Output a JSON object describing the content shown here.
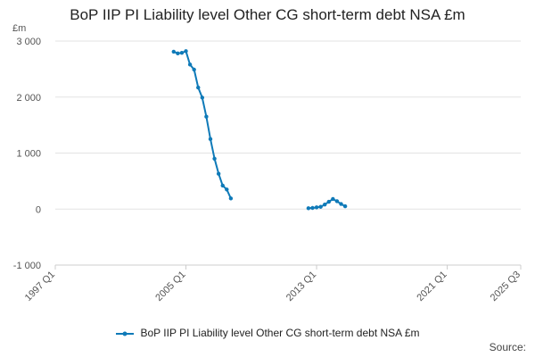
{
  "title": "BoP IIP PI Liability level Other CG short-term debt NSA £m",
  "unit_label": "£m",
  "source_label": "Source:",
  "colors": {
    "series": "#0f7ab8",
    "grid": "#e3e3e3",
    "axis": "#cccccc",
    "text": "#555555"
  },
  "chart_data": {
    "type": "line",
    "title": "BoP IIP PI Liability level Other CG short-term debt NSA £m",
    "xlabel": "",
    "ylabel": "£m",
    "x_range": [
      "1997 Q1",
      "2025 Q3"
    ],
    "x_ticks": [
      "1997 Q1",
      "2005 Q1",
      "2013 Q1",
      "2021 Q1",
      "2025 Q3"
    ],
    "ylim": [
      -1000,
      3000
    ],
    "y_ticks": [
      -1000,
      0,
      1000,
      2000,
      3000
    ],
    "y_tick_labels": [
      "-1 000",
      "0",
      "1 000",
      "2 000",
      "3 000"
    ],
    "grid": true,
    "legend_position": "bottom",
    "series": [
      {
        "name": "BoP IIP PI Liability level Other CG short-term debt NSA £m",
        "segments": [
          [
            {
              "x": "2004 Q2",
              "y": 2810
            },
            {
              "x": "2004 Q3",
              "y": 2780
            },
            {
              "x": "2004 Q4",
              "y": 2790
            },
            {
              "x": "2005 Q1",
              "y": 2820
            },
            {
              "x": "2005 Q2",
              "y": 2580
            },
            {
              "x": "2005 Q3",
              "y": 2490
            },
            {
              "x": "2005 Q4",
              "y": 2170
            },
            {
              "x": "2006 Q1",
              "y": 1990
            },
            {
              "x": "2006 Q2",
              "y": 1650
            },
            {
              "x": "2006 Q3",
              "y": 1250
            },
            {
              "x": "2006 Q4",
              "y": 900
            },
            {
              "x": "2007 Q1",
              "y": 630
            },
            {
              "x": "2007 Q2",
              "y": 420
            },
            {
              "x": "2007 Q3",
              "y": 350
            },
            {
              "x": "2007 Q4",
              "y": 190
            }
          ],
          [
            {
              "x": "2012 Q3",
              "y": 15
            },
            {
              "x": "2012 Q4",
              "y": 20
            },
            {
              "x": "2013 Q1",
              "y": 30
            },
            {
              "x": "2013 Q2",
              "y": 40
            },
            {
              "x": "2013 Q3",
              "y": 80
            },
            {
              "x": "2013 Q4",
              "y": 130
            },
            {
              "x": "2014 Q1",
              "y": 180
            },
            {
              "x": "2014 Q2",
              "y": 140
            },
            {
              "x": "2014 Q3",
              "y": 90
            },
            {
              "x": "2014 Q4",
              "y": 50
            }
          ]
        ]
      }
    ]
  }
}
